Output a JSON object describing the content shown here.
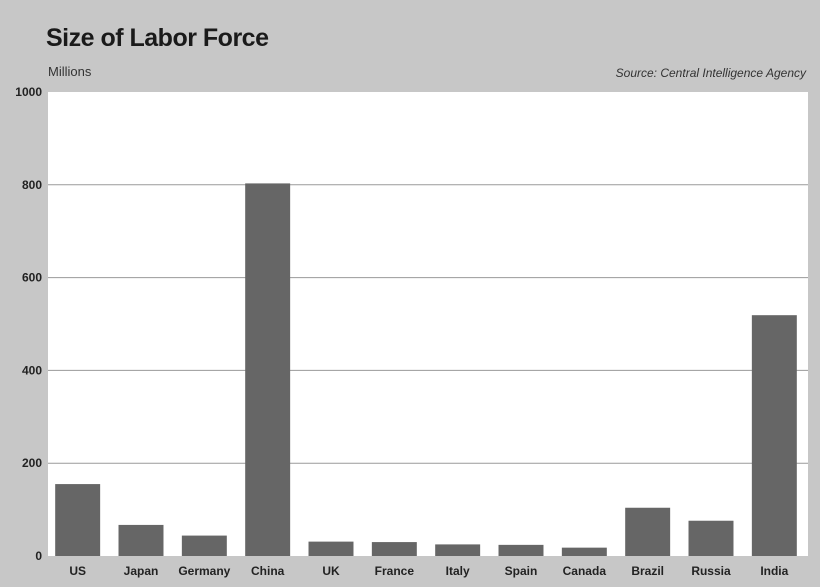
{
  "chart_data": {
    "type": "bar",
    "title": "Size of Labor Force",
    "subtitle": "Millions",
    "source": "Source: Central Intelligence Agency",
    "xlabel": "",
    "ylabel": "",
    "ylim": [
      0,
      1000
    ],
    "yticks": [
      0,
      200,
      400,
      600,
      800,
      1000
    ],
    "ytick_labels": [
      "0",
      "200",
      "400",
      "600",
      "800",
      "1000"
    ],
    "grid": true,
    "categories": [
      "US",
      "Japan",
      "Germany",
      "China",
      "UK",
      "France",
      "Italy",
      "Spain",
      "Canada",
      "Brazil",
      "Russia",
      "India"
    ],
    "values": [
      155,
      67,
      44,
      803,
      31,
      30,
      25,
      24,
      18,
      104,
      76,
      519
    ],
    "colors": {
      "bar": "#666666",
      "background": "#c7c7c7",
      "plot": "#ffffff"
    }
  }
}
